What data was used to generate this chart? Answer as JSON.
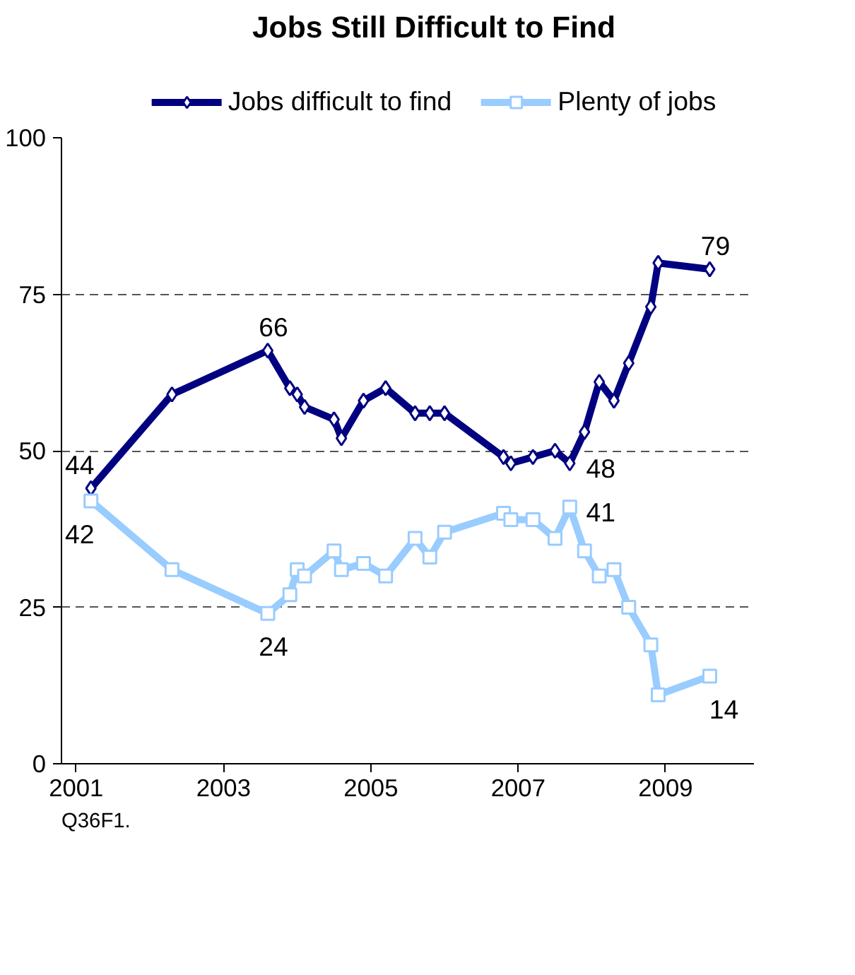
{
  "chart_data": {
    "type": "line",
    "title": "Jobs Still Difficult to Find",
    "x": [
      2001.2,
      2002.3,
      2003.6,
      2003.9,
      2004.0,
      2004.1,
      2004.5,
      2004.6,
      2004.9,
      2005.2,
      2005.6,
      2005.8,
      2006.0,
      2006.8,
      2006.9,
      2007.2,
      2007.5,
      2007.7,
      2007.9,
      2008.1,
      2008.3,
      2008.5,
      2008.8,
      2008.9,
      2009.6
    ],
    "series": [
      {
        "name": "Jobs difficult to find",
        "color": "#000080",
        "marker": "diamond",
        "values": [
          44,
          59,
          66,
          60,
          59,
          57,
          55,
          52,
          58,
          60,
          56,
          56,
          56,
          49,
          48,
          49,
          50,
          48,
          53,
          61,
          58,
          64,
          73,
          80,
          79
        ],
        "value_labels": [
          "44",
          null,
          "66",
          null,
          null,
          null,
          null,
          null,
          null,
          null,
          null,
          null,
          null,
          null,
          null,
          null,
          null,
          "48",
          null,
          null,
          null,
          null,
          null,
          null,
          "79"
        ]
      },
      {
        "name": "Plenty of jobs",
        "color": "#99ccff",
        "marker": "square",
        "values": [
          42,
          31,
          24,
          27,
          31,
          30,
          34,
          31,
          32,
          30,
          36,
          33,
          37,
          40,
          39,
          39,
          36,
          41,
          34,
          30,
          31,
          25,
          19,
          11,
          14
        ],
        "value_labels": [
          "42",
          null,
          "24",
          null,
          null,
          null,
          null,
          null,
          null,
          null,
          null,
          null,
          null,
          null,
          null,
          null,
          null,
          "41",
          null,
          null,
          null,
          null,
          null,
          null,
          "14"
        ]
      }
    ],
    "xlim": [
      2000.8,
      2010.2
    ],
    "xticks": [
      2001,
      2003,
      2005,
      2007,
      2009
    ],
    "ylim": [
      0,
      100
    ],
    "yticks": [
      0,
      25,
      50,
      75,
      100
    ],
    "grid": "y",
    "legend": "top",
    "line_style": "solid",
    "annotations": [
      "Q36F1."
    ]
  }
}
